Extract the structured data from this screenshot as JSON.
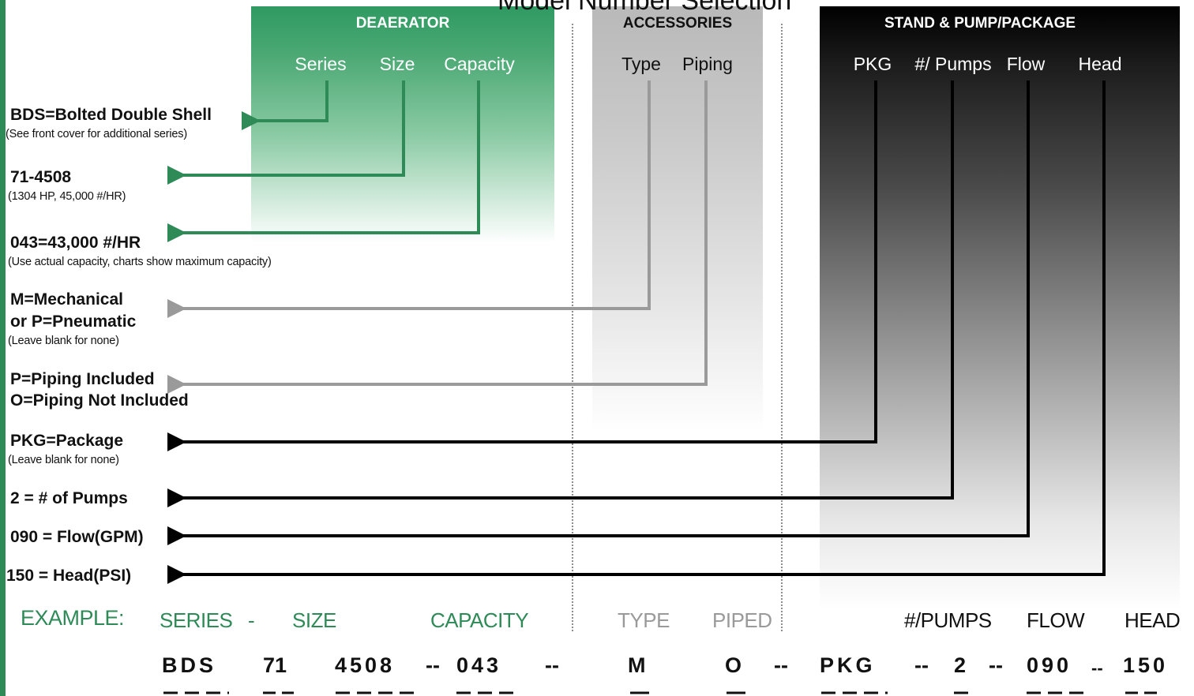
{
  "title": "Model Number Selection",
  "sections": {
    "deaerator": "DEAERATOR",
    "accessories": "ACCESSORIES",
    "stand": "STAND & PUMP/PACKAGE"
  },
  "columns": {
    "series": "Series",
    "size": "Size",
    "capacity": "Capacity",
    "type": "Type",
    "piping": "Piping",
    "pkg": "PKG",
    "pumps": "#/ Pumps",
    "flow": "Flow",
    "head": "Head"
  },
  "options": {
    "series_main": "BDS=Bolted Double Shell",
    "series_note": "(See front cover for additional series)",
    "size_main": "71-4508",
    "size_note": "(1304 HP, 45,000 #/HR)",
    "capacity_main": "043=43,000 #/HR",
    "capacity_note": "(Use actual capacity, charts show maximum capacity)",
    "type_main1": "M=Mechanical",
    "type_main2": "or P=Pneumatic",
    "type_note": "(Leave blank for none)",
    "piping_main1": "P=Piping Included",
    "piping_main2": "O=Piping Not Included",
    "pkg_main": "PKG=Package",
    "pkg_note": "(Leave blank for none)",
    "pumps_main": "2 = # of Pumps",
    "flow_main": "090 = Flow(GPM)",
    "head_main": "150 = Head(PSI)"
  },
  "example": {
    "label": "EXAMPLE:",
    "col_series": "SERIES",
    "col_dash": "-",
    "col_size": "SIZE",
    "col_capacity": "CAPACITY",
    "col_type": "TYPE",
    "col_piped": "PIPED",
    "col_pumps": "#/PUMPS",
    "col_flow": "FLOW",
    "col_head": "HEAD",
    "val_series": "BDS",
    "val_size1": "71",
    "val_size2": "4508",
    "val_capacity": "043",
    "val_type": "M",
    "val_piped": "O",
    "val_pkg": "PKG",
    "val_pumps": "2",
    "val_flow": "090",
    "val_head": "150",
    "sep": "--"
  },
  "colors": {
    "green": "#2e8b57",
    "grey": "#9a9a9a",
    "black": "#000000"
  }
}
